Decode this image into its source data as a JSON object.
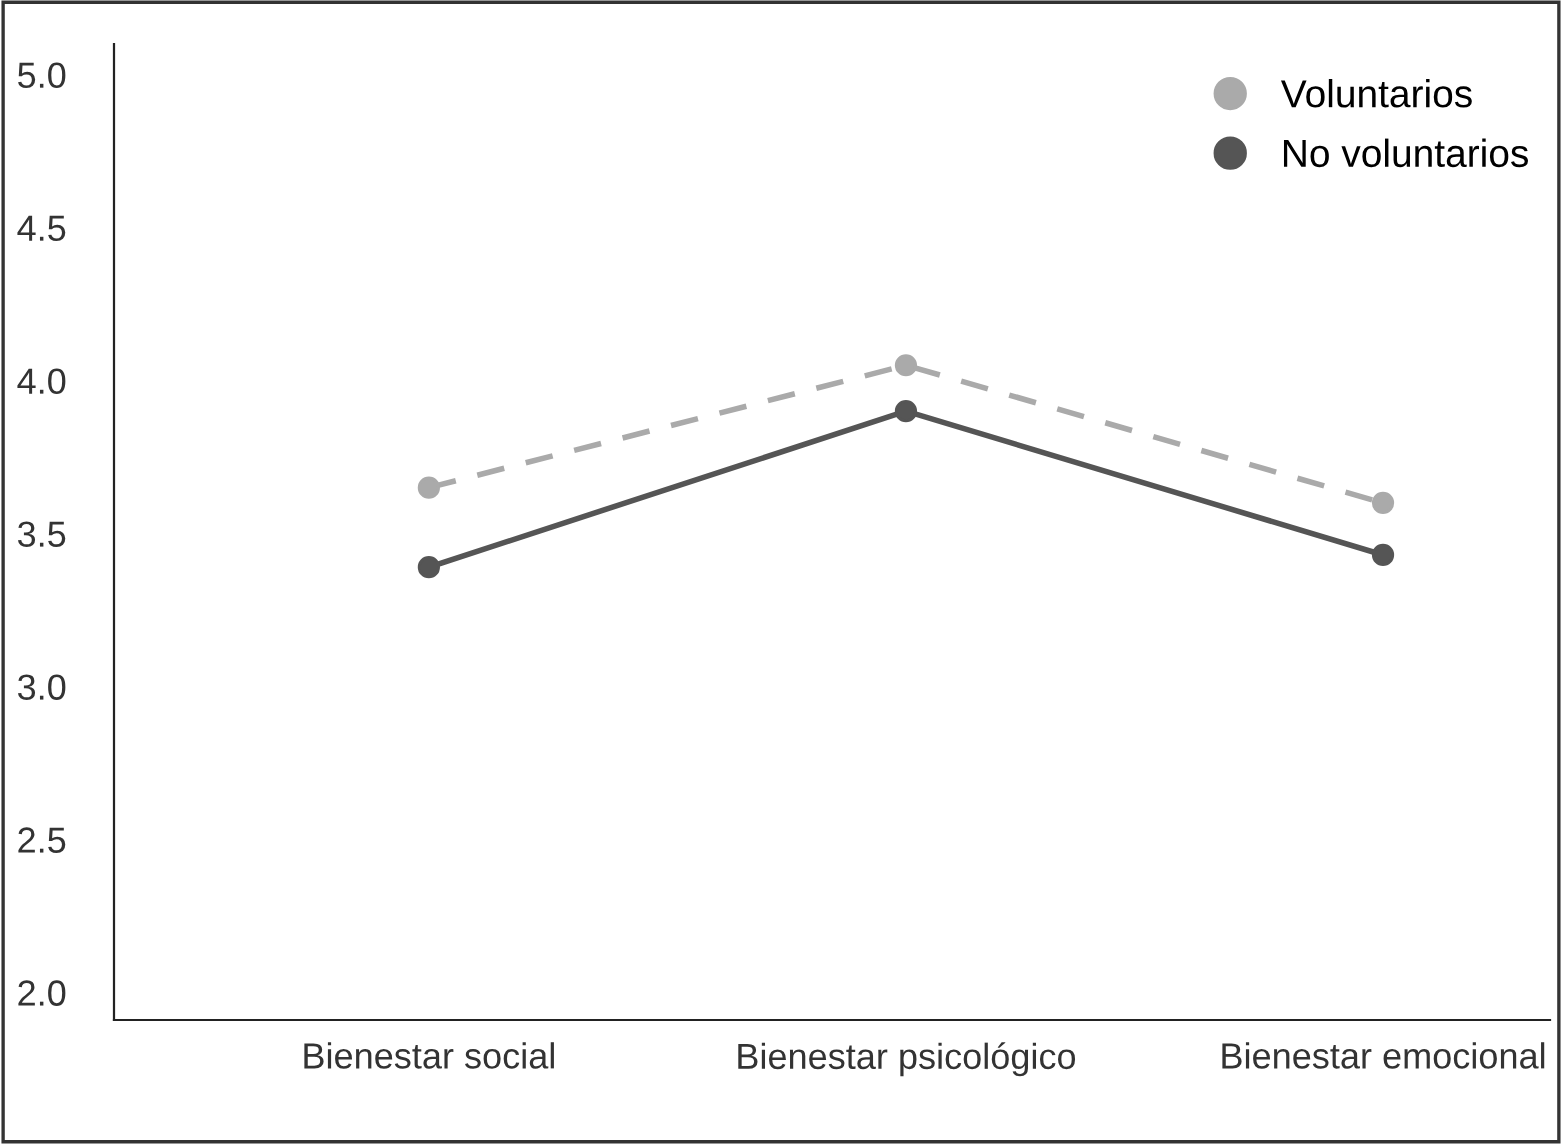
{
  "chart_data": {
    "type": "line",
    "categories": [
      "Bienestar social",
      "Bienestar psicológico",
      "Bienestar emocional"
    ],
    "series": [
      {
        "name": "Voluntarios",
        "color": "#aaaaaa",
        "values": [
          3.65,
          4.05,
          3.6
        ],
        "line_style": "dashed"
      },
      {
        "name": "No voluntarios",
        "color": "#555555",
        "values": [
          3.39,
          3.9,
          3.43
        ],
        "line_style": "solid"
      }
    ],
    "ylim": [
      1.91,
      5.1
    ],
    "yticks": [
      {
        "value": 2.0,
        "label": "2.0"
      },
      {
        "value": 2.5,
        "label": "2.5"
      },
      {
        "value": 3.0,
        "label": "3.0"
      },
      {
        "value": 3.5,
        "label": "3.5"
      },
      {
        "value": 4.0,
        "label": "4.0"
      },
      {
        "value": 4.5,
        "label": "4.5"
      },
      {
        "value": 5.0,
        "label": "5.0"
      }
    ],
    "marker": "circle",
    "legend": "top right",
    "grid": false
  }
}
